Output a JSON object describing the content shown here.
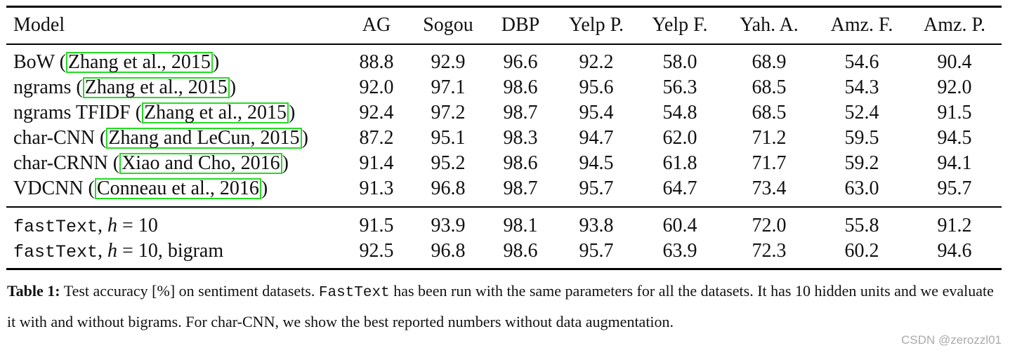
{
  "table": {
    "headers": [
      "Model",
      "AG",
      "Sogou",
      "DBP",
      "Yelp P.",
      "Yelp F.",
      "Yah. A.",
      "Amz. F.",
      "Amz. P."
    ],
    "rows": [
      {
        "model": "BoW (",
        "cite": "Zhang et al., 2015",
        "suffix": ")",
        "values": [
          "88.8",
          "92.9",
          "96.6",
          "92.2",
          "58.0",
          "68.9",
          "54.6",
          "90.4"
        ]
      },
      {
        "model": "ngrams (",
        "cite": "Zhang et al., 2015",
        "suffix": ")",
        "values": [
          "92.0",
          "97.1",
          "98.6",
          "95.6",
          "56.3",
          "68.5",
          "54.3",
          "92.0"
        ]
      },
      {
        "model": "ngrams TFIDF (",
        "cite": "Zhang et al., 2015",
        "suffix": ")",
        "values": [
          "92.4",
          "97.2",
          "98.7",
          "95.4",
          "54.8",
          "68.5",
          "52.4",
          "91.5"
        ]
      },
      {
        "model": "char-CNN (",
        "cite": "Zhang and LeCun, 2015",
        "suffix": ")",
        "values": [
          "87.2",
          "95.1",
          "98.3",
          "94.7",
          "62.0",
          "71.2",
          "59.5",
          "94.5"
        ]
      },
      {
        "model": "char-CRNN (",
        "cite": "Xiao and Cho, 2016",
        "suffix": ")",
        "values": [
          "91.4",
          "95.2",
          "98.6",
          "94.5",
          "61.8",
          "71.7",
          "59.2",
          "94.1"
        ]
      },
      {
        "model": "VDCNN (",
        "cite": "Conneau et al., 2016",
        "suffix": ")",
        "values": [
          "91.3",
          "96.8",
          "98.7",
          "95.7",
          "64.7",
          "73.4",
          "63.0",
          "95.7"
        ]
      }
    ],
    "fasttext_rows": [
      {
        "name": "fastText",
        "sep": ", ",
        "var": "h",
        "eq": " = 10",
        "extra": "",
        "values": [
          "91.5",
          "93.9",
          "98.1",
          "93.8",
          "60.4",
          "72.0",
          "55.8",
          "91.2"
        ]
      },
      {
        "name": "fastText",
        "sep": ", ",
        "var": "h",
        "eq": " = 10",
        "extra": ", bigram",
        "values": [
          "92.5",
          "96.8",
          "98.6",
          "95.7",
          "63.9",
          "72.3",
          "60.2",
          "94.6"
        ]
      }
    ]
  },
  "caption": {
    "label": "Table 1:",
    "part1": " Test accuracy [%] on sentiment datasets. ",
    "mono": "FastText",
    "part2": " has been run with the same parameters for all the datasets. It has 10 hidden units and we evaluate it with and without bigrams. For char-CNN, we show the best reported numbers without data augmentation."
  },
  "watermark": "CSDN @zerozzl01"
}
